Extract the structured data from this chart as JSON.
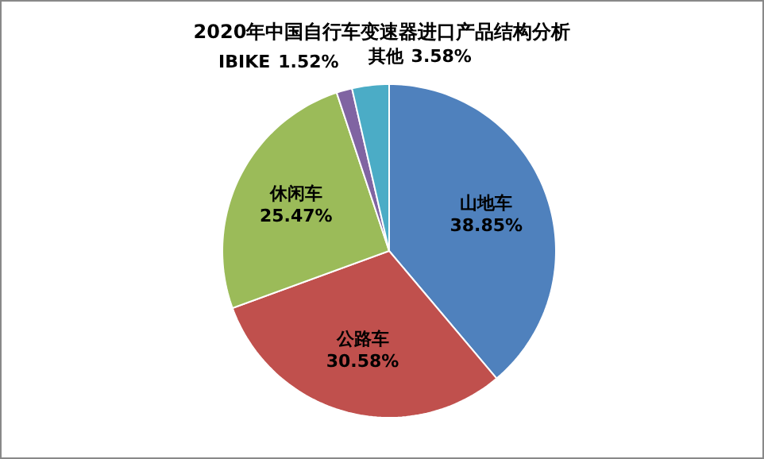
{
  "chart_data": {
    "type": "pie",
    "title": "2020年中国自行车变速器进口产品结构分析",
    "categories": [
      "山地车",
      "公路车",
      "休闲车",
      "IBIKE",
      "其他"
    ],
    "values": [
      38.85,
      30.58,
      25.47,
      1.52,
      3.58
    ],
    "value_labels": [
      "38.85%",
      "30.58%",
      "25.47%",
      "1.52%",
      "3.58%"
    ],
    "colors": [
      "#4f81bd",
      "#c0504d",
      "#9bbb59",
      "#8064a2",
      "#4bacc6"
    ]
  }
}
